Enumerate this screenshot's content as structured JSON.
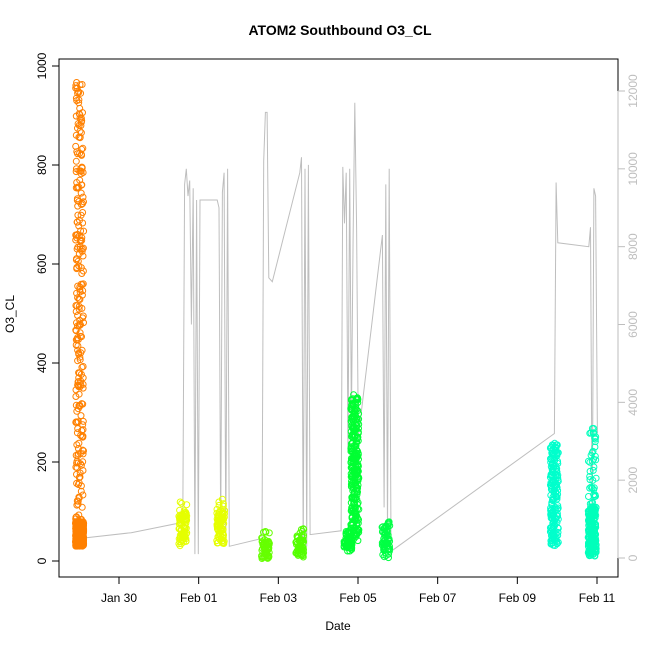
{
  "chart_data": {
    "type": "scatter",
    "title": "ATOM2 Southbound O3_CL",
    "xlabel": "Date",
    "ylabel": "O3_CL",
    "x_ticks": [
      "Jan 30",
      "Feb 01",
      "Feb 03",
      "Feb 05",
      "Feb 07",
      "Feb 09",
      "Feb 11"
    ],
    "y_ticks": [
      "0",
      "200",
      "400",
      "600",
      "800",
      "1000"
    ],
    "y2_ticks": [
      "0",
      "2000",
      "4000",
      "6000",
      "8000",
      "10000",
      "12000"
    ],
    "xlim": [
      "2014-01-29 00:00",
      "2014-02-11 13:00"
    ],
    "ylim": [
      0,
      1000
    ],
    "y2lim": [
      0,
      12000
    ],
    "clusters": [
      {
        "date": "2014-01-29 12:00",
        "color": "#FF8000",
        "y_min": 30,
        "y_max": 975,
        "core_min": 30,
        "core_max": 80
      },
      {
        "date": "2014-02-01 00:00",
        "color": "#E5FF00",
        "y_min": 30,
        "y_max": 125,
        "core_min": 35,
        "core_max": 100
      },
      {
        "date": "2014-02-01 22:00",
        "color": "#E5FF00",
        "y_min": 30,
        "y_max": 125,
        "core_min": 35,
        "core_max": 100
      },
      {
        "date": "2014-02-03 00:00",
        "color": "#66FF00",
        "y_min": 5,
        "y_max": 60,
        "core_min": 5,
        "core_max": 45
      },
      {
        "date": "2014-02-03 20:00",
        "color": "#55FF00",
        "y_min": 5,
        "y_max": 70,
        "core_min": 10,
        "core_max": 55
      },
      {
        "date": "2014-02-05 00:00",
        "color": "#00FF33",
        "y_min": 20,
        "y_max": 60,
        "core_min": 20,
        "core_max": 60
      },
      {
        "date": "2014-02-05 04:00",
        "color": "#00FF33",
        "y_min": 40,
        "y_max": 340,
        "core_min": 50,
        "core_max": 330
      },
      {
        "date": "2014-02-05 22:00",
        "color": "#00FF44",
        "y_min": 5,
        "y_max": 85,
        "core_min": 10,
        "core_max": 75
      },
      {
        "date": "2014-02-10 00:00",
        "color": "#00FFCC",
        "y_min": 30,
        "y_max": 240,
        "core_min": 30,
        "core_max": 235
      },
      {
        "date": "2014-02-10 22:00",
        "color": "#00FFBB",
        "y_min": 10,
        "y_max": 270,
        "core_min": 10,
        "core_max": 110
      }
    ],
    "secondary_series": {
      "axis": "right",
      "color": "#bebebe",
      "points": [
        [
          "2014-01-29 12:00",
          500
        ],
        [
          "2014-01-30 18:00",
          650
        ],
        [
          "2014-01-31 22:00",
          900
        ],
        [
          "2014-02-01 00:00",
          1000
        ],
        [
          "2014-02-01 01:00",
          9600
        ],
        [
          "2014-02-01 02:00",
          10000
        ],
        [
          "2014-02-01 03:00",
          9300
        ],
        [
          "2014-02-01 04:00",
          9700
        ],
        [
          "2014-02-01 05:00",
          6000
        ],
        [
          "2014-02-01 06:00",
          9500
        ],
        [
          "2014-02-01 07:00",
          100
        ],
        [
          "2014-02-01 08:00",
          9200
        ],
        [
          "2014-02-01 09:00",
          100
        ],
        [
          "2014-02-01 10:00",
          9200
        ],
        [
          "2014-02-01 20:00",
          9200
        ],
        [
          "2014-02-01 21:00",
          9000
        ],
        [
          "2014-02-01 22:00",
          600
        ],
        [
          "2014-02-01 23:00",
          9400
        ],
        [
          "2014-02-02 00:00",
          9900
        ],
        [
          "2014-02-02 01:00",
          400
        ],
        [
          "2014-02-02 02:00",
          10000
        ],
        [
          "2014-02-02 03:00",
          300
        ],
        [
          "2014-02-02 22:00",
          500
        ],
        [
          "2014-02-02 23:00",
          10200
        ],
        [
          "2014-02-03 00:00",
          11450
        ],
        [
          "2014-02-03 01:00",
          11450
        ],
        [
          "2014-02-03 02:00",
          7200
        ],
        [
          "2014-02-03 04:00",
          7100
        ],
        [
          "2014-02-03 20:00",
          9900
        ],
        [
          "2014-02-03 21:00",
          10300
        ],
        [
          "2014-02-03 22:00",
          300
        ],
        [
          "2014-02-03 23:00",
          10000
        ],
        [
          "2014-02-04 00:00",
          300
        ],
        [
          "2014-02-04 01:00",
          10100
        ],
        [
          "2014-02-04 02:00",
          600
        ],
        [
          "2014-02-04 20:00",
          700
        ],
        [
          "2014-02-04 21:00",
          10050
        ],
        [
          "2014-02-04 22:00",
          8600
        ],
        [
          "2014-02-04 23:00",
          9900
        ],
        [
          "2014-02-05 00:00",
          2700
        ],
        [
          "2014-02-05 01:00",
          10000
        ],
        [
          "2014-02-05 02:00",
          3500
        ],
        [
          "2014-02-05 03:00",
          8200
        ],
        [
          "2014-02-05 04:00",
          11700
        ],
        [
          "2014-02-05 05:00",
          8500
        ],
        [
          "2014-02-05 06:00",
          3100
        ],
        [
          "2014-02-05 20:00",
          8300
        ],
        [
          "2014-02-05 21:00",
          1300
        ],
        [
          "2014-02-05 22:00",
          9600
        ],
        [
          "2014-02-05 23:00",
          600
        ],
        [
          "2014-02-06 00:00",
          10000
        ],
        [
          "2014-02-06 01:00",
          300
        ],
        [
          "2014-02-06 02:00",
          200
        ],
        [
          "2014-02-10 00:00",
          3200
        ],
        [
          "2014-02-10 01:00",
          9650
        ],
        [
          "2014-02-10 02:00",
          8100
        ],
        [
          "2014-02-10 20:00",
          8000
        ],
        [
          "2014-02-10 21:00",
          8500
        ],
        [
          "2014-02-10 22:00",
          700
        ],
        [
          "2014-02-10 23:00",
          9500
        ],
        [
          "2014-02-11 00:00",
          9300
        ],
        [
          "2014-02-11 01:00",
          3200
        ]
      ]
    },
    "grid": false,
    "legend": "none"
  }
}
